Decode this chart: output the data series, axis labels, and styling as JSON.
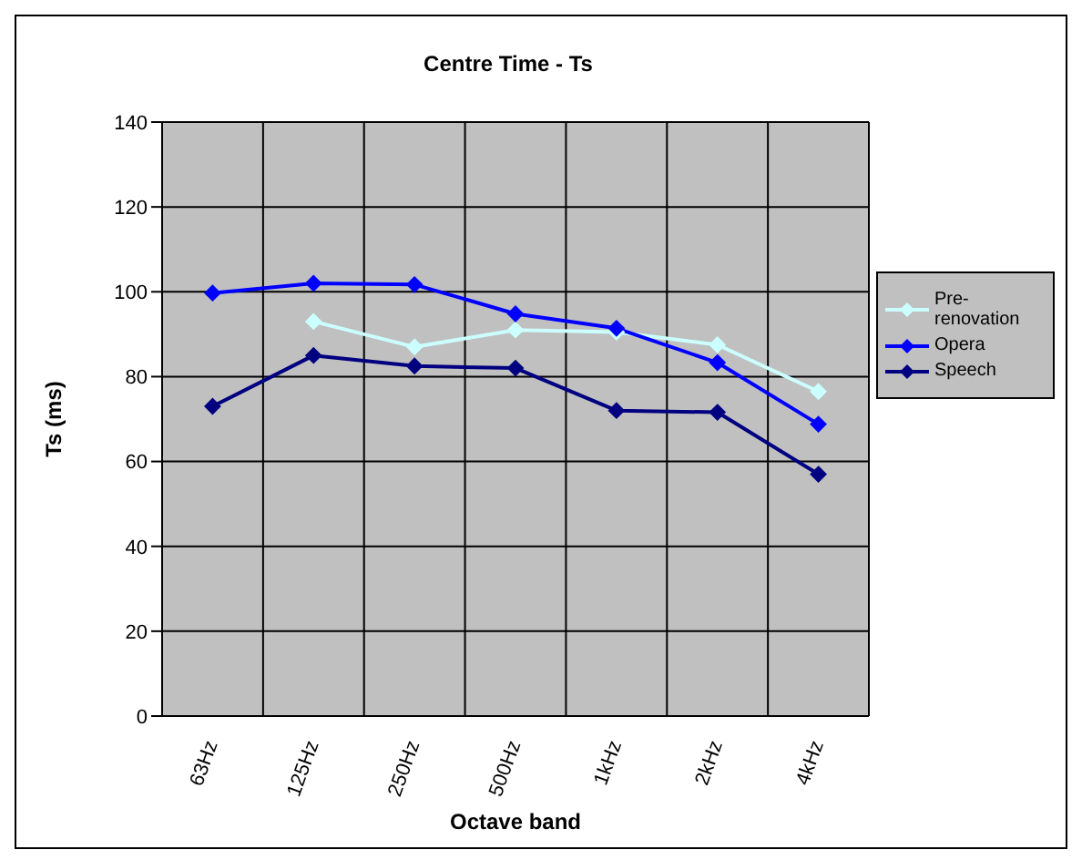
{
  "chart_data": {
    "type": "line",
    "title": "Centre Time - Ts",
    "xlabel": "Octave band",
    "ylabel": "Ts (ms)",
    "categories": [
      "63Hz",
      "125Hz",
      "250Hz",
      "500Hz",
      "1kHz",
      "2kHz",
      "4kHz"
    ],
    "series": [
      {
        "name": "Pre-renovation",
        "color": "#ccffff",
        "values": [
          null,
          93,
          87,
          91,
          90.5,
          87.5,
          76.5
        ]
      },
      {
        "name": "Opera",
        "color": "#0000ff",
        "values": [
          99.7,
          102,
          101.7,
          94.8,
          91.4,
          83.3,
          68.8
        ]
      },
      {
        "name": "Speech",
        "color": "#000080",
        "values": [
          73,
          85,
          82.5,
          82,
          72,
          71.6,
          57
        ]
      }
    ],
    "ylim": [
      0,
      140
    ],
    "yticks": [
      0,
      20,
      40,
      60,
      80,
      100,
      120,
      140
    ],
    "grid": true,
    "legend": "right",
    "marker": "diamond",
    "line_style": "solid"
  }
}
